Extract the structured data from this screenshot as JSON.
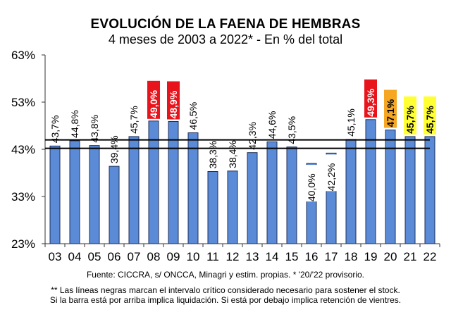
{
  "chart_data": {
    "type": "bar",
    "title": "EVOLUCIÓN DE LA FAENA DE HEMBRAS",
    "subtitle": "4 meses de 2003 a 2022* - En % del total",
    "xlabel": "",
    "ylabel": "",
    "ylim": [
      23,
      63
    ],
    "yticks": [
      23,
      33,
      43,
      53,
      63
    ],
    "ytick_labels": [
      "23%",
      "33%",
      "43%",
      "53%",
      "63%"
    ],
    "categories": [
      "03",
      "04",
      "05",
      "06",
      "07",
      "08",
      "09",
      "10",
      "11",
      "12",
      "13",
      "14",
      "15",
      "16",
      "17",
      "18",
      "19",
      "20",
      "21",
      "22"
    ],
    "values": [
      43.7,
      44.8,
      43.8,
      39.4,
      45.7,
      49.0,
      48.9,
      46.5,
      38.3,
      38.4,
      42.3,
      44.6,
      43.5,
      40.0,
      42.2,
      45.1,
      49.3,
      47.1,
      45.7,
      45.7
    ],
    "data_labels": [
      "43,7%",
      "44,8%",
      "43,8%",
      "39,4%",
      "45,7%",
      "49,0%",
      "48,9%",
      "46,5%",
      "38,3%",
      "38,4%",
      "42,3%",
      "44,6%",
      "43,5%",
      "40,0%",
      "42,2%",
      "45,1%",
      "49,3%",
      "47,1%",
      "45,7%",
      "45,7%"
    ],
    "label_highlight": [
      null,
      null,
      null,
      null,
      null,
      "red",
      "red",
      null,
      null,
      null,
      null,
      null,
      null,
      null,
      null,
      null,
      "red",
      "orange",
      "yellow",
      "yellow"
    ],
    "reference_lines": [
      45.0,
      43.2
    ],
    "bar_color": "#5b8bd6",
    "highlight_colors": {
      "red": "#e8141c",
      "orange": "#f5a623",
      "yellow": "#ffff33"
    },
    "grid": false,
    "legend": "none"
  },
  "footer": {
    "source": "Fuente: CICCRA, s/ ONCCA, Minagri y estim. propias. * '20/'22  provisorio.",
    "note_line1": "** Las líneas negras marcan el intervalo crítico considerado necesario para sostener el stock.",
    "note_line2": "Si la barra está por arriba implica liquidación. Si está por debajo implica retención de vientres."
  }
}
